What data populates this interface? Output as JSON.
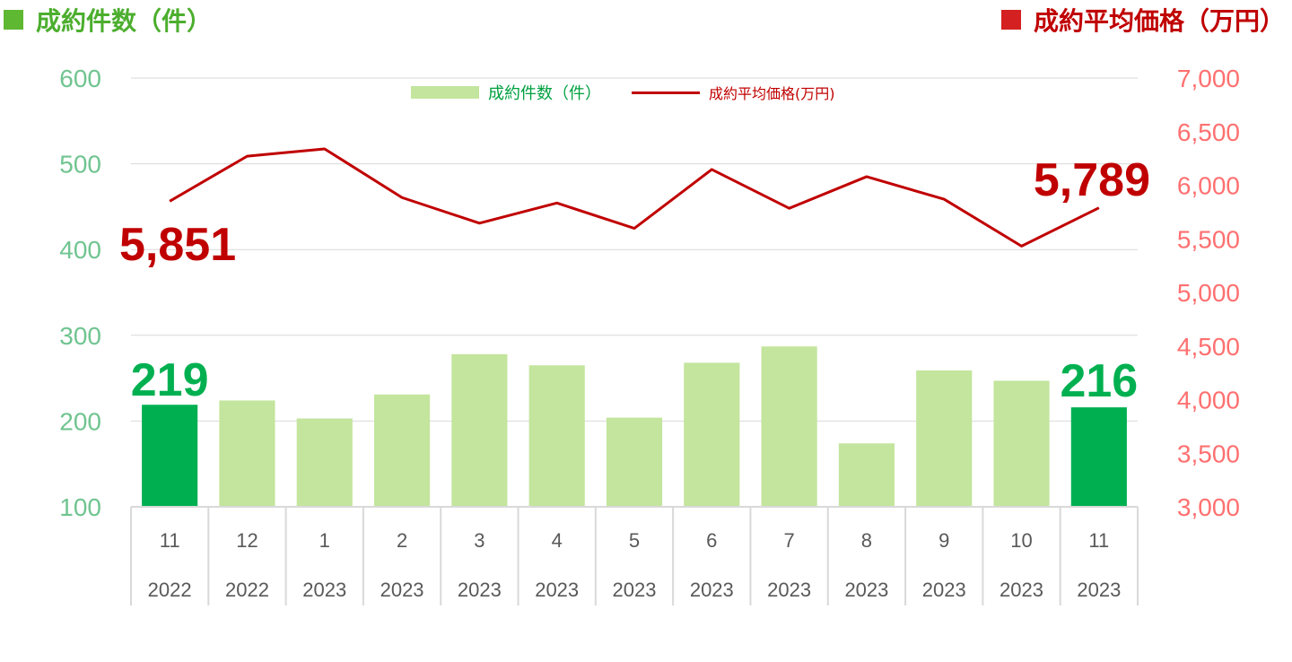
{
  "titles": {
    "left": "成約件数（件）",
    "right": "成約平均価格（万円）"
  },
  "legend": {
    "bar_label": "成約件数（件）",
    "line_label": "成約平均価格(万円)"
  },
  "colors": {
    "bar_light": "#c3e59d",
    "bar_highlight": "#00b050",
    "line": "#c00000",
    "left_axis": "#70c490",
    "right_axis": "#ff7070",
    "left_title": "#4cae2e",
    "right_title": "#c00000",
    "legend_bar_text": "#00a040",
    "legend_line_text": "#c00000",
    "callout_bar": "#00b050",
    "callout_line": "#c00000",
    "grid": "#d9d9d9"
  },
  "chart_data": {
    "type": "bar+line",
    "months": [
      "11",
      "12",
      "1",
      "2",
      "3",
      "4",
      "5",
      "6",
      "7",
      "8",
      "9",
      "10",
      "11"
    ],
    "years": [
      "2022",
      "2022",
      "2023",
      "2023",
      "2023",
      "2023",
      "2023",
      "2023",
      "2023",
      "2023",
      "2023",
      "2023",
      "2023"
    ],
    "series": [
      {
        "name": "成約件数（件）",
        "kind": "bar",
        "axis": "left",
        "values": [
          219,
          224,
          203,
          231,
          278,
          265,
          204,
          268,
          287,
          174,
          259,
          247,
          216
        ],
        "highlight": [
          true,
          false,
          false,
          false,
          false,
          false,
          false,
          false,
          false,
          false,
          false,
          false,
          true
        ]
      },
      {
        "name": "成約平均価格(万円)",
        "kind": "line",
        "axis": "right",
        "values": [
          5851,
          6271,
          6339,
          5885,
          5646,
          5834,
          5598,
          6147,
          5785,
          6080,
          5870,
          5432,
          5789
        ]
      }
    ],
    "left_axis": {
      "min": 100,
      "max": 600,
      "step": 100,
      "ticks": [
        "100",
        "200",
        "300",
        "400",
        "500",
        "600"
      ]
    },
    "right_axis": {
      "min": 3000,
      "max": 7000,
      "step": 500,
      "ticks": [
        "3,000",
        "3,500",
        "4,000",
        "4,500",
        "5,000",
        "5,500",
        "6,000",
        "6,500",
        "7,000"
      ]
    },
    "callouts": {
      "first_bar": "219",
      "last_bar": "216",
      "first_line": "5,851",
      "last_line": "5,789"
    },
    "legend_position": "top-center",
    "grid": true
  }
}
